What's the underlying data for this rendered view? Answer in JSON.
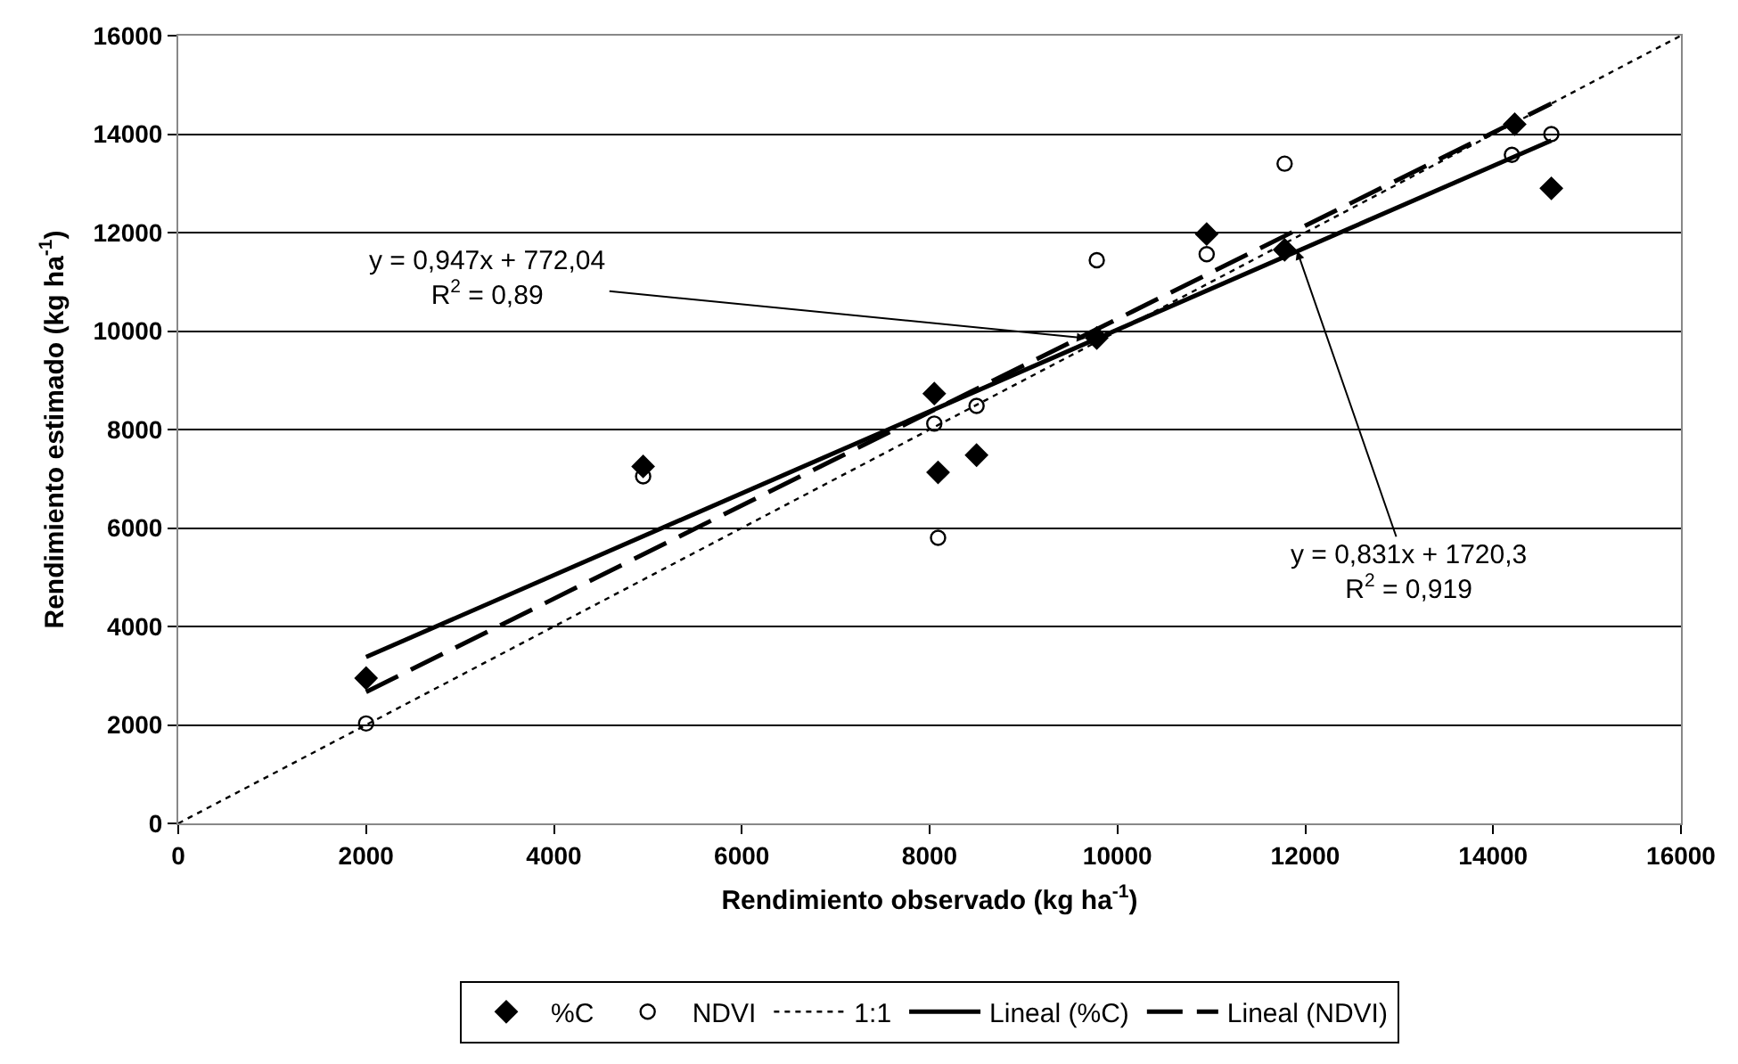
{
  "chart_data": {
    "type": "scatter",
    "xlabel": "Rendimiento observado (kg ha$^{-1}$)",
    "ylabel": "Rendimiento estimado (kg ha$^{-1}$)",
    "xlim": [
      0,
      16000
    ],
    "xticks": [
      0,
      2000,
      4000,
      6000,
      8000,
      10000,
      12000,
      14000,
      16000
    ],
    "ylim": [
      0,
      16000
    ],
    "yticks": [
      0,
      2000,
      4000,
      6000,
      8000,
      10000,
      12000,
      14000,
      16000
    ],
    "grid": "y",
    "legend": "bottom",
    "series": [
      {
        "name": "%C",
        "marker": "diamond",
        "color": "#000000",
        "x": [
          2000,
          4950,
          8050,
          8090,
          8500,
          9780,
          10950,
          11780,
          14230,
          14620
        ],
        "values": [
          2950,
          7250,
          8730,
          7130,
          7480,
          9860,
          11970,
          11650,
          14200,
          12900
        ]
      },
      {
        "name": "NDVI",
        "marker": "circle",
        "color": "#000000",
        "x": [
          2000,
          4950,
          8050,
          8090,
          8500,
          9780,
          10950,
          11780,
          14200,
          14620
        ],
        "values": [
          2030,
          7050,
          8120,
          5800,
          8480,
          11440,
          11560,
          13400,
          13580,
          14000
        ]
      },
      {
        "name": "1:1",
        "type": "line",
        "line_style": "dotted",
        "color": "#000000",
        "x": [
          0,
          16000
        ],
        "values": [
          0,
          16000
        ]
      },
      {
        "name": "Lineal (%C)",
        "type": "line",
        "line_style": "solid",
        "color": "#000000",
        "x": [
          2000,
          14620
        ],
        "values": [
          3380,
          13870
        ]
      },
      {
        "name": "Lineal (NDVI)",
        "type": "line",
        "line_style": "dashed",
        "color": "#000000",
        "x": [
          2000,
          14620
        ],
        "values": [
          2670,
          14620
        ]
      }
    ],
    "annotations": [
      {
        "text": "y = 0,947x + 772,04\nR$^{2}$ = 0,89",
        "x": 9700,
        "y": 9850
      },
      {
        "text": "y = 0,831x + 1720,3\nR$^{2}$ = 0,919",
        "x": 11900,
        "y": 11700
      }
    ]
  }
}
